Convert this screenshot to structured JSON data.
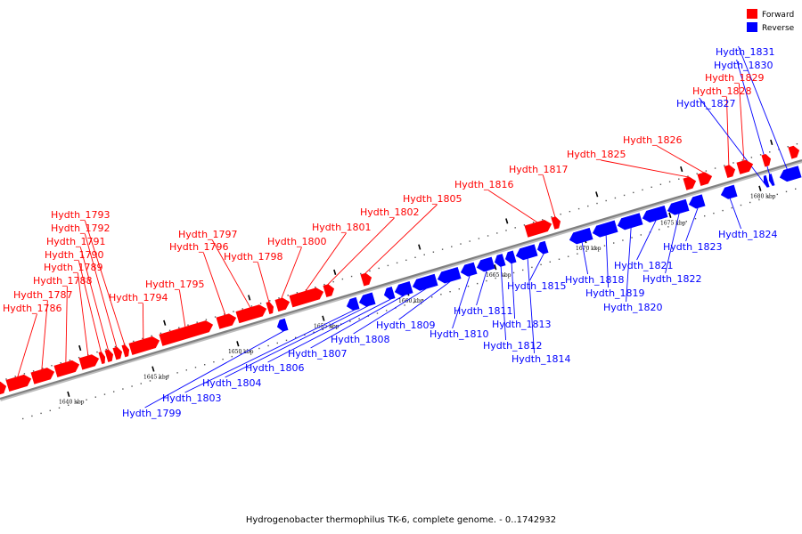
{
  "caption": "Hydrogenobacter thermophilus TK-6, complete genome. - 0..1742932",
  "legend": [
    {
      "label": "Forward",
      "color": "#ff0000"
    },
    {
      "label": "Reverse",
      "color": "#0000ff"
    }
  ],
  "colors": {
    "forward": "#ff0000",
    "reverse": "#0000ff",
    "backbone": "#808080"
  },
  "ticks": [
    "1640 kbp",
    "1645 kbp",
    "1650 kbp",
    "1655 kbp",
    "1660 kbp",
    "1665 kbp",
    "1670 kbp",
    "1675 kbp",
    "1680 kbp"
  ],
  "genes_forward": [
    "Hydth_1786",
    "Hydth_1787",
    "Hydth_1788",
    "Hydth_1789",
    "Hydth_1790",
    "Hydth_1791",
    "Hydth_1792",
    "Hydth_1793",
    "Hydth_1794",
    "Hydth_1795",
    "Hydth_1796",
    "Hydth_1797",
    "Hydth_1798",
    "Hydth_1800",
    "Hydth_1801",
    "Hydth_1802",
    "Hydth_1805",
    "Hydth_1816",
    "Hydth_1817",
    "Hydth_1825",
    "Hydth_1826",
    "Hydth_1828",
    "Hydth_1829"
  ],
  "genes_reverse": [
    "Hydth_1799",
    "Hydth_1803",
    "Hydth_1804",
    "Hydth_1806",
    "Hydth_1807",
    "Hydth_1808",
    "Hydth_1809",
    "Hydth_1810",
    "Hydth_1811",
    "Hydth_1812",
    "Hydth_1813",
    "Hydth_1814",
    "Hydth_1815",
    "Hydth_1818",
    "Hydth_1819",
    "Hydth_1820",
    "Hydth_1821",
    "Hydth_1822",
    "Hydth_1823",
    "Hydth_1824",
    "Hydth_1827",
    "Hydth_1830",
    "Hydth_1831"
  ]
}
